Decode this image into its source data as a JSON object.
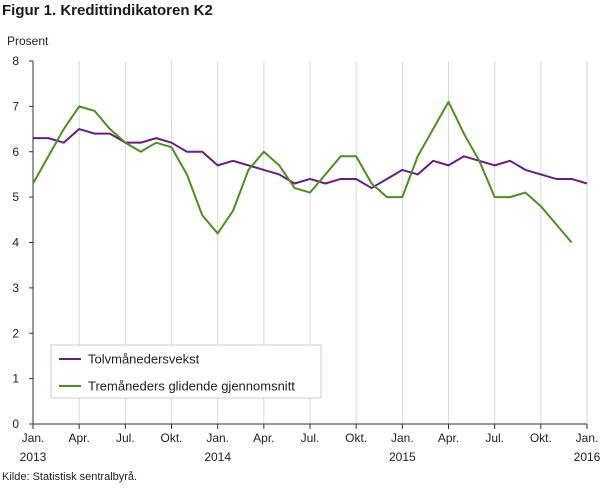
{
  "figure_title": "Figur 1. Kredittindikatoren K2",
  "source": "Kilde: Statistisk sentralbyrå.",
  "colors": {
    "series1": "#6a1b86",
    "series2": "#4e8f1f",
    "grid": "#d9d9d9",
    "axis": "#333333"
  },
  "chart_data": {
    "type": "line",
    "title": "Figur 1. Kredittindikatoren K2",
    "ylabel": "Prosent",
    "xlabel": "",
    "ylim": [
      0,
      8
    ],
    "yticks": [
      0,
      1,
      2,
      3,
      4,
      5,
      6,
      7,
      8
    ],
    "xlim": [
      0,
      36
    ],
    "xticks": [
      {
        "pos": 0,
        "label": "Jan.",
        "year": "2013"
      },
      {
        "pos": 3,
        "label": "Apr.",
        "year": ""
      },
      {
        "pos": 6,
        "label": "Jul.",
        "year": ""
      },
      {
        "pos": 9,
        "label": "Okt.",
        "year": ""
      },
      {
        "pos": 12,
        "label": "Jan.",
        "year": "2014"
      },
      {
        "pos": 15,
        "label": "Apr.",
        "year": ""
      },
      {
        "pos": 18,
        "label": "Jul.",
        "year": ""
      },
      {
        "pos": 21,
        "label": "Okt.",
        "year": ""
      },
      {
        "pos": 24,
        "label": "Jan.",
        "year": "2015"
      },
      {
        "pos": 27,
        "label": "Apr.",
        "year": ""
      },
      {
        "pos": 30,
        "label": "Jul.",
        "year": ""
      },
      {
        "pos": 33,
        "label": "Okt.",
        "year": ""
      },
      {
        "pos": 36,
        "label": "Jan.",
        "year": "2016"
      }
    ],
    "grid": "vertical",
    "legend_position": "bottom-left",
    "series": [
      {
        "name": "Tolvmånedersvekst",
        "color": "#6a1b86",
        "x": [
          0,
          1,
          2,
          3,
          4,
          5,
          6,
          7,
          8,
          9,
          10,
          11,
          12,
          13,
          14,
          15,
          16,
          17,
          18,
          19,
          20,
          21,
          22,
          23,
          24,
          25,
          26,
          27,
          28,
          29,
          30,
          31,
          32,
          33,
          34,
          35,
          36
        ],
        "values": [
          6.3,
          6.3,
          6.2,
          6.5,
          6.4,
          6.4,
          6.2,
          6.2,
          6.3,
          6.2,
          6.0,
          6.0,
          5.7,
          5.8,
          5.7,
          5.6,
          5.5,
          5.3,
          5.4,
          5.3,
          5.4,
          5.4,
          5.2,
          5.4,
          5.6,
          5.5,
          5.8,
          5.7,
          5.9,
          5.8,
          5.7,
          5.8,
          5.6,
          5.5,
          5.4,
          5.4,
          5.3
        ]
      },
      {
        "name": "Tremåneders glidende gjennomsnitt",
        "color": "#4e8f1f",
        "x": [
          0,
          1,
          2,
          3,
          4,
          5,
          6,
          7,
          8,
          9,
          10,
          11,
          12,
          13,
          14,
          15,
          16,
          17,
          18,
          19,
          20,
          21,
          22,
          23,
          24,
          25,
          26,
          27,
          28,
          29,
          30,
          31,
          32,
          33,
          34,
          35
        ],
        "values": [
          5.3,
          5.9,
          6.5,
          7.0,
          6.9,
          6.5,
          6.2,
          6.0,
          6.2,
          6.1,
          5.5,
          4.6,
          4.2,
          4.7,
          5.6,
          6.0,
          5.7,
          5.2,
          5.1,
          5.5,
          5.9,
          5.9,
          5.3,
          5.0,
          5.0,
          5.9,
          6.5,
          7.1,
          6.4,
          5.8,
          5.0,
          5.0,
          5.1,
          4.8,
          4.4,
          4.0
        ]
      }
    ]
  }
}
